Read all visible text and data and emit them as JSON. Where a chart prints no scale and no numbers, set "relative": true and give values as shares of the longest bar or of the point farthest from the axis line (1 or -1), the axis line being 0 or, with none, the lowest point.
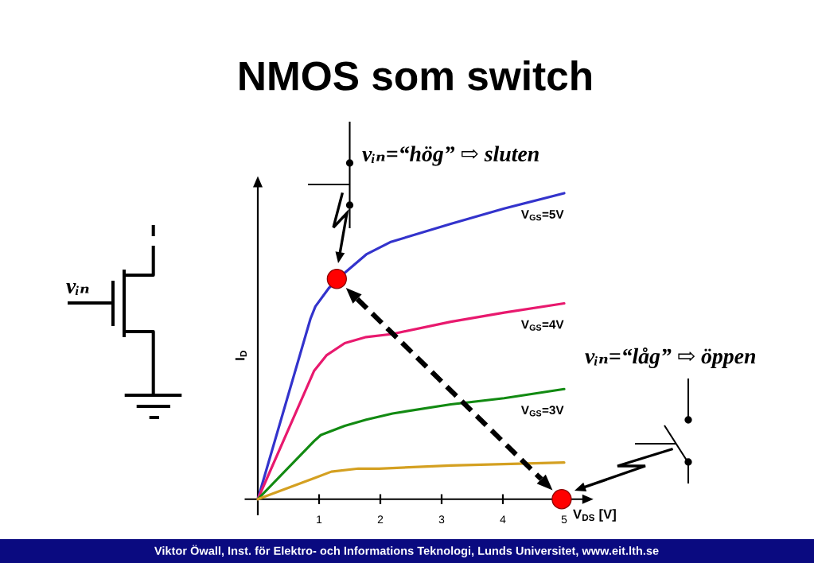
{
  "chart_data": {
    "type": "line",
    "title": "NMOS som switch",
    "xlabel": "V$_{DS}$ [V]",
    "ylabel": "I$_{D}$",
    "relative": true,
    "xlim": [
      -0.2,
      5.4
    ],
    "xticks": [
      1,
      2,
      3,
      4,
      5
    ],
    "tick_labels": "x",
    "series": [
      {
        "name": "V$_{GS}$=5V",
        "color": "#3333cc",
        "x": [
          0,
          0.86,
          0.94,
          1.16,
          1.42,
          1.77,
          2.16,
          3.15,
          4.02,
          5.0
        ],
        "values": [
          0,
          0.59,
          0.63,
          0.69,
          0.74,
          0.8,
          0.84,
          0.9,
          0.95,
          1.0
        ]
      },
      {
        "name": "V$_{GS}$=4V",
        "color": "#e8196e",
        "x": [
          0,
          0.92,
          1.12,
          1.42,
          1.77,
          2.2,
          3.15,
          4.02,
          5.0
        ],
        "values": [
          0,
          0.42,
          0.47,
          0.51,
          0.53,
          0.54,
          0.58,
          0.61,
          0.64
        ]
      },
      {
        "name": "V$_{GS}$=3V",
        "color": "#128a12",
        "x": [
          0,
          0.92,
          1.03,
          1.42,
          1.77,
          2.2,
          3.15,
          4.02,
          5.0
        ],
        "values": [
          0,
          0.19,
          0.21,
          0.24,
          0.26,
          0.28,
          0.31,
          0.33,
          0.36
        ]
      },
      {
        "color": "#d4a021",
        "x": [
          0,
          0.94,
          1.2,
          1.64,
          1.98,
          3.15,
          5.0
        ],
        "values": [
          0,
          0.07,
          0.09,
          0.1,
          0.1,
          0.11,
          0.12
        ]
      },
      {
        "type": "scatter",
        "color": "#ff0000",
        "marker": "circle",
        "x": [
          1.29,
          4.96
        ],
        "values": [
          0.72,
          0
        ]
      }
    ],
    "annotations": [
      "vᵢₙ=“hög” ⇨ sluten",
      "vᵢₙ=“låg” ⇨ öppen",
      "vᵢₙ",
      "Viktor Öwall, Inst. för Elektro- och Informations Teknologi, Lunds Universitet, www.eit.lth.se"
    ]
  }
}
